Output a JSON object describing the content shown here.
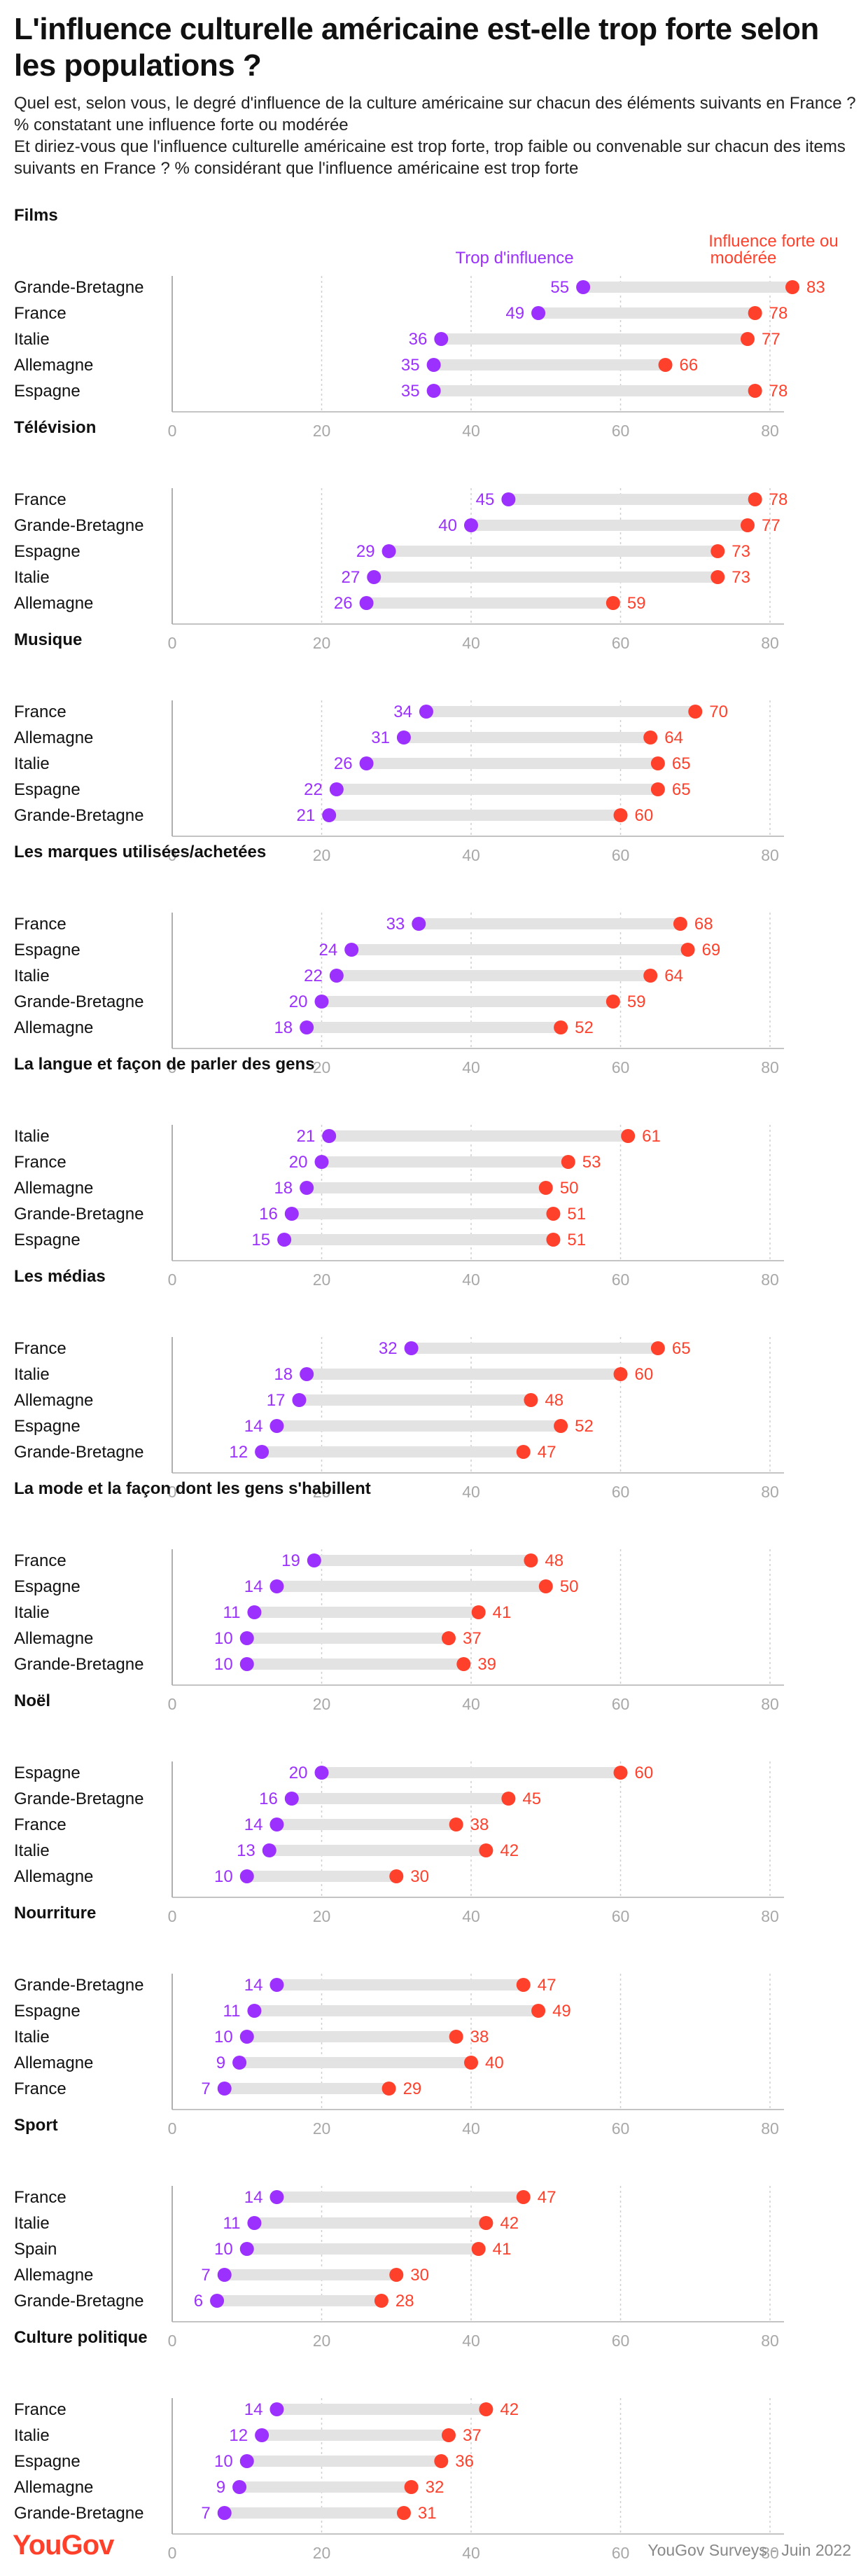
{
  "header": {
    "title": "L'influence culturelle américaine est-elle trop forte selon les populations ?",
    "subtitle_1": "Quel est, selon vous, le degré d'influence de la culture américaine sur chacun des éléments suivants en France ? % constatant une influence forte ou modérée",
    "subtitle_2": "Et diriez-vous que l'influence culturelle américaine est trop forte, trop faible ou convenable sur chacun des items suivants en France ? % considérant que l'influence américaine est trop forte"
  },
  "legend": {
    "purple": "Trop d'influence",
    "red_line1": "Influence forte ou",
    "red_line2": "modérée"
  },
  "colors": {
    "purple": "#9b30ff",
    "red": "#ff412c",
    "track": "#e3e3e3",
    "grid": "#cfcfcf",
    "axis": "#b0b0b0"
  },
  "footer": {
    "logo": "YouGov",
    "source": "YouGov Surveys - Juin 2022"
  },
  "chart_data": [
    {
      "type": "dumbbell",
      "title": "Films",
      "xlim": [
        0,
        85
      ],
      "xticks": [
        0,
        20,
        40,
        60,
        80
      ],
      "series": [
        {
          "name": "Trop d'influence",
          "color": "#9b30ff"
        },
        {
          "name": "Influence forte ou modérée",
          "color": "#ff412c"
        }
      ],
      "rows": [
        {
          "label": "Grande-Bretagne",
          "purple": 55,
          "red": 83
        },
        {
          "label": "France",
          "purple": 49,
          "red": 78
        },
        {
          "label": "Italie",
          "purple": 36,
          "red": 77
        },
        {
          "label": "Allemagne",
          "purple": 35,
          "red": 66
        },
        {
          "label": "Espagne",
          "purple": 35,
          "red": 78
        }
      ]
    },
    {
      "type": "dumbbell",
      "title": "Télévision",
      "xlim": [
        0,
        85
      ],
      "xticks": [
        0,
        20,
        40,
        60,
        80
      ],
      "rows": [
        {
          "label": "France",
          "purple": 45,
          "red": 78
        },
        {
          "label": "Grande-Bretagne",
          "purple": 40,
          "red": 77
        },
        {
          "label": "Espagne",
          "purple": 29,
          "red": 73
        },
        {
          "label": "Italie",
          "purple": 27,
          "red": 73
        },
        {
          "label": "Allemagne",
          "purple": 26,
          "red": 59
        }
      ]
    },
    {
      "type": "dumbbell",
      "title": "Musique",
      "xlim": [
        0,
        85
      ],
      "xticks": [
        0,
        20,
        40,
        60,
        80
      ],
      "rows": [
        {
          "label": "France",
          "purple": 34,
          "red": 70
        },
        {
          "label": "Allemagne",
          "purple": 31,
          "red": 64
        },
        {
          "label": "Italie",
          "purple": 26,
          "red": 65
        },
        {
          "label": "Espagne",
          "purple": 22,
          "red": 65
        },
        {
          "label": "Grande-Bretagne",
          "purple": 21,
          "red": 60
        }
      ]
    },
    {
      "type": "dumbbell",
      "title": "Les marques utilisées/achetées",
      "xlim": [
        0,
        85
      ],
      "xticks": [
        0,
        20,
        40,
        60,
        80
      ],
      "rows": [
        {
          "label": "France",
          "purple": 33,
          "red": 68
        },
        {
          "label": "Espagne",
          "purple": 24,
          "red": 69
        },
        {
          "label": "Italie",
          "purple": 22,
          "red": 64
        },
        {
          "label": "Grande-Bretagne",
          "purple": 20,
          "red": 59
        },
        {
          "label": "Allemagne",
          "purple": 18,
          "red": 52
        }
      ]
    },
    {
      "type": "dumbbell",
      "title": "La langue et façon de parler des gens",
      "xlim": [
        0,
        85
      ],
      "xticks": [
        0,
        20,
        40,
        60,
        80
      ],
      "rows": [
        {
          "label": "Italie",
          "purple": 21,
          "red": 61
        },
        {
          "label": "France",
          "purple": 20,
          "red": 53
        },
        {
          "label": "Allemagne",
          "purple": 18,
          "red": 50
        },
        {
          "label": "Grande-Bretagne",
          "purple": 16,
          "red": 51
        },
        {
          "label": "Espagne",
          "purple": 15,
          "red": 51
        }
      ]
    },
    {
      "type": "dumbbell",
      "title": "Les médias",
      "xlim": [
        0,
        85
      ],
      "xticks": [
        0,
        20,
        40,
        60,
        80
      ],
      "rows": [
        {
          "label": "France",
          "purple": 32,
          "red": 65
        },
        {
          "label": "Italie",
          "purple": 18,
          "red": 60
        },
        {
          "label": "Allemagne",
          "purple": 17,
          "red": 48
        },
        {
          "label": "Espagne",
          "purple": 14,
          "red": 52
        },
        {
          "label": "Grande-Bretagne",
          "purple": 12,
          "red": 47
        }
      ]
    },
    {
      "type": "dumbbell",
      "title": "La mode et la façon dont les gens s'habillent",
      "xlim": [
        0,
        85
      ],
      "xticks": [
        0,
        20,
        40,
        60,
        80
      ],
      "rows": [
        {
          "label": "France",
          "purple": 19,
          "red": 48
        },
        {
          "label": "Espagne",
          "purple": 14,
          "red": 50
        },
        {
          "label": "Italie",
          "purple": 11,
          "red": 41
        },
        {
          "label": "Allemagne",
          "purple": 10,
          "red": 37
        },
        {
          "label": "Grande-Bretagne",
          "purple": 10,
          "red": 39
        }
      ]
    },
    {
      "type": "dumbbell",
      "title": "Noël",
      "xlim": [
        0,
        85
      ],
      "xticks": [
        0,
        20,
        40,
        60,
        80
      ],
      "rows": [
        {
          "label": "Espagne",
          "purple": 20,
          "red": 60
        },
        {
          "label": "Grande-Bretagne",
          "purple": 16,
          "red": 45
        },
        {
          "label": "France",
          "purple": 14,
          "red": 38
        },
        {
          "label": "Italie",
          "purple": 13,
          "red": 42
        },
        {
          "label": "Allemagne",
          "purple": 10,
          "red": 30
        }
      ]
    },
    {
      "type": "dumbbell",
      "title": "Nourriture",
      "xlim": [
        0,
        85
      ],
      "xticks": [
        0,
        20,
        40,
        60,
        80
      ],
      "rows": [
        {
          "label": "Grande-Bretagne",
          "purple": 14,
          "red": 47
        },
        {
          "label": "Espagne",
          "purple": 11,
          "red": 49
        },
        {
          "label": "Italie",
          "purple": 10,
          "red": 38
        },
        {
          "label": "Allemagne",
          "purple": 9,
          "red": 40
        },
        {
          "label": "France",
          "purple": 7,
          "red": 29
        }
      ]
    },
    {
      "type": "dumbbell",
      "title": "Sport",
      "xlim": [
        0,
        85
      ],
      "xticks": [
        0,
        20,
        40,
        60,
        80
      ],
      "rows": [
        {
          "label": "France",
          "purple": 14,
          "red": 47
        },
        {
          "label": "Italie",
          "purple": 11,
          "red": 42
        },
        {
          "label": "Spain",
          "purple": 10,
          "red": 41
        },
        {
          "label": "Allemagne",
          "purple": 7,
          "red": 30
        },
        {
          "label": "Grande-Bretagne",
          "purple": 6,
          "red": 28
        }
      ]
    },
    {
      "type": "dumbbell",
      "title": "Culture politique",
      "xlim": [
        0,
        85
      ],
      "xticks": [
        0,
        20,
        40,
        60,
        80
      ],
      "rows": [
        {
          "label": "France",
          "purple": 14,
          "red": 42
        },
        {
          "label": "Italie",
          "purple": 12,
          "red": 37
        },
        {
          "label": "Espagne",
          "purple": 10,
          "red": 36
        },
        {
          "label": "Allemagne",
          "purple": 9,
          "red": 32
        },
        {
          "label": "Grande-Bretagne",
          "purple": 7,
          "red": 31
        }
      ]
    }
  ]
}
